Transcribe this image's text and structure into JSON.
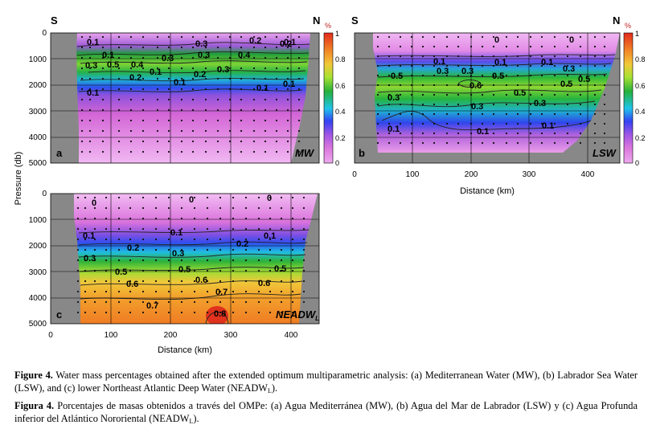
{
  "figure": {
    "axis": {
      "ylabel": "Pressure (db)",
      "xlabel": "Distance (km)",
      "y_ticks": [
        "0",
        "1000",
        "2000",
        "3000",
        "4000",
        "5000"
      ],
      "x_ticks": [
        "0",
        "100",
        "200",
        "300",
        "400"
      ],
      "south_label": "S",
      "north_label": "N"
    },
    "colorbar": {
      "unit": "%",
      "ticks": [
        "0",
        "0.2",
        "0.4",
        "0.6",
        "0.8",
        "1"
      ],
      "colors": [
        "#e9a8ea",
        "#cf62d8",
        "#3b3ff0",
        "#22c9e7",
        "#27b13a",
        "#a6e433",
        "#f2c53a",
        "#f28c28",
        "#e0321d"
      ]
    },
    "panels": [
      {
        "letter": "a",
        "name": "MW",
        "labels": [
          "0.1",
          "0.1",
          "0.3",
          "0.5",
          "0.4",
          "0.3",
          "0.3",
          "0.3",
          "0.2",
          "0.2",
          "0.1",
          "0.1",
          "0.4",
          "0.1",
          "0.2",
          "0.2",
          "0.1",
          "0.1",
          "0.3",
          "0.1"
        ]
      },
      {
        "letter": "b",
        "name": "LSW",
        "labels": [
          "0",
          "0",
          "0.1",
          "0.1",
          "0.1",
          "0.3",
          "0.5",
          "0.3",
          "0.6",
          "0.5",
          "0.5",
          "0.5",
          "0.3",
          "0.3",
          "0.3",
          "0.1",
          "0.1",
          "0.1",
          "0.5",
          "0.3"
        ]
      },
      {
        "letter": "c",
        "name": "NEADW",
        "name_sub": "L",
        "labels": [
          "0",
          "0",
          "0",
          "0.1",
          "0.1",
          "0.2",
          "0.2",
          "0.1",
          "0.3",
          "0.3",
          "0.5",
          "0.5",
          "0.5",
          "0.6",
          "0.6",
          "0.6",
          "0.7",
          "0.7",
          "0.8"
        ]
      }
    ]
  },
  "caption": {
    "en_label": "Figure 4.",
    "en_text": " Water mass percentages obtained after the extended optimum multiparametric analysis: (a) Mediterranean Water (MW), (b) Labrador Sea Water (LSW), and (c) lower Northeast Atlantic Deep Water (NEADW",
    "en_sub": "L",
    "en_end": ").",
    "es_label": "Figura 4.",
    "es_text": " Porcentajes de masas obtenidos a través del OMPe: (a) Agua Mediterránea (MW), (b) Agua del Mar de Labrador (LSW) y (c) Agua Profunda inferior del Atlántico Nororiental (NEADW",
    "es_sub": "L",
    "es_end": ")."
  }
}
